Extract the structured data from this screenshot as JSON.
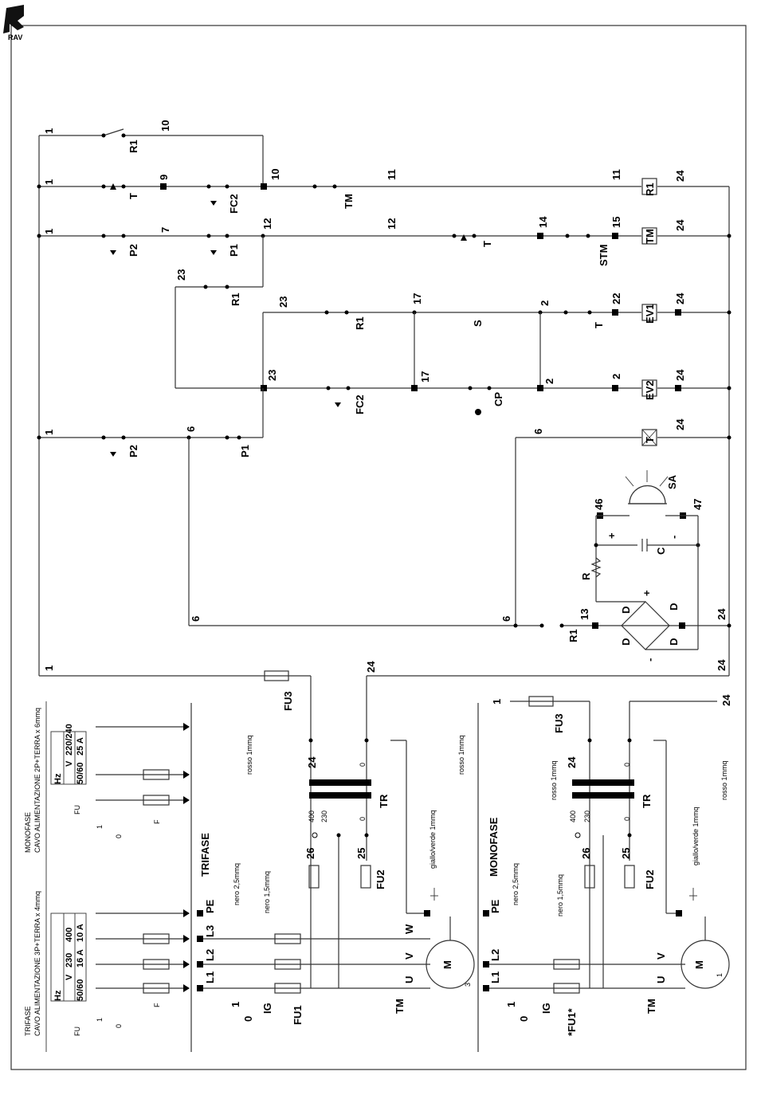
{
  "logo_text": "RAV",
  "sections": {
    "trifase": "TRIFASE",
    "monofase": "MONOFASE"
  },
  "supply_tables": {
    "trifase": {
      "title": "TRIFASE",
      "cable": "CAVO ALIMENTAZIONE 3P+TERRA x 4mmq",
      "hz": "Hz",
      "v": "V",
      "fu": "FU",
      "hz_value": "50/60",
      "v_values": [
        "230",
        "400"
      ],
      "fu_values": [
        "16 A",
        "10 A"
      ]
    },
    "monofase": {
      "title": "MONOFASE",
      "cable": "CAVO ALIMENTAZIONE 2P+TERRA x 6mmq",
      "hz": "Hz",
      "v": "V",
      "fu": "FU",
      "hz_value": "50/60",
      "v_values": [
        "220/240"
      ],
      "fu_values": [
        "25 A"
      ]
    }
  },
  "components": {
    "R1": "R1",
    "T": "T",
    "FC2": "FC2",
    "TM": "TM",
    "P1": "P1",
    "P2": "P2",
    "STM": "STM",
    "S": "S",
    "CP": "CP",
    "EV1": "EV1",
    "EV2": "EV2",
    "SA": "SA",
    "R": "R",
    "C": "C",
    "D": "D",
    "TR": "TR",
    "FU1": "FU1",
    "FU1_star": "*FU1*",
    "FU2": "FU2",
    "FU3": "FU3",
    "IG": "IG",
    "F": "F",
    "M": "M",
    "L1": "L1",
    "L2": "L2",
    "L3": "L3",
    "PE": "PE",
    "U": "U",
    "V": "V",
    "W": "W",
    "one": "1",
    "zero": "0",
    "three": "3"
  },
  "wires": {
    "rosso": "rosso 1mmq",
    "nero25": "nero 2,5mmq",
    "nero15": "nero 1,5mmq",
    "giallo": "giallo/verde 1mmq"
  },
  "node_numbers": {
    "n1": "1",
    "n2": "2",
    "n6": "6",
    "n7": "7",
    "n9": "9",
    "n10": "10",
    "n11": "11",
    "n12": "12",
    "n13": "13",
    "n14": "14",
    "n15": "15",
    "n17": "17",
    "n22": "22",
    "n23": "23",
    "n24": "24",
    "n25": "25",
    "n26": "26",
    "n46": "46",
    "n47": "47",
    "n0": "0",
    "n230": "230",
    "n400": "400"
  },
  "polarity": {
    "plus": "+",
    "minus": "-"
  }
}
